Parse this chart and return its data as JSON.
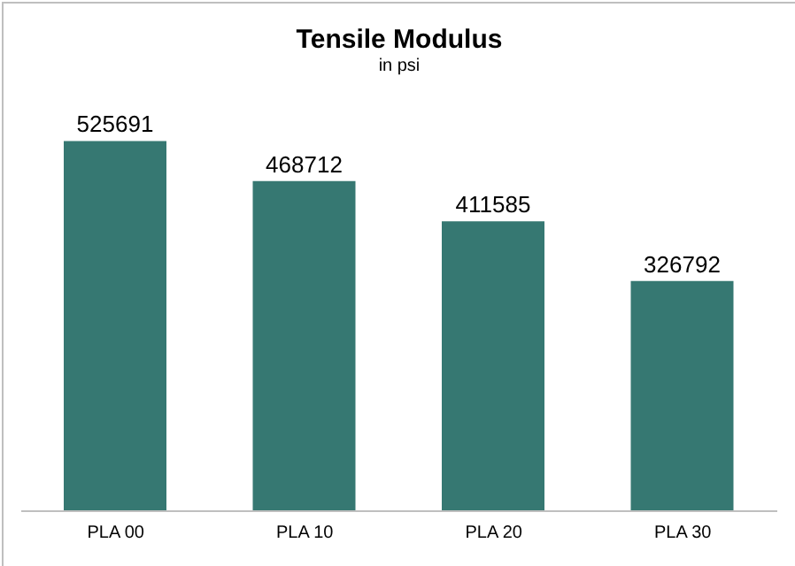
{
  "chart_data": {
    "type": "bar",
    "title": "Tensile Modulus",
    "subtitle": "in psi",
    "categories": [
      "PLA 00",
      "PLA 10",
      "PLA 20",
      "PLA 30"
    ],
    "values": [
      525691,
      468712,
      411585,
      326792
    ],
    "color": "#367872",
    "data_labels": true
  }
}
